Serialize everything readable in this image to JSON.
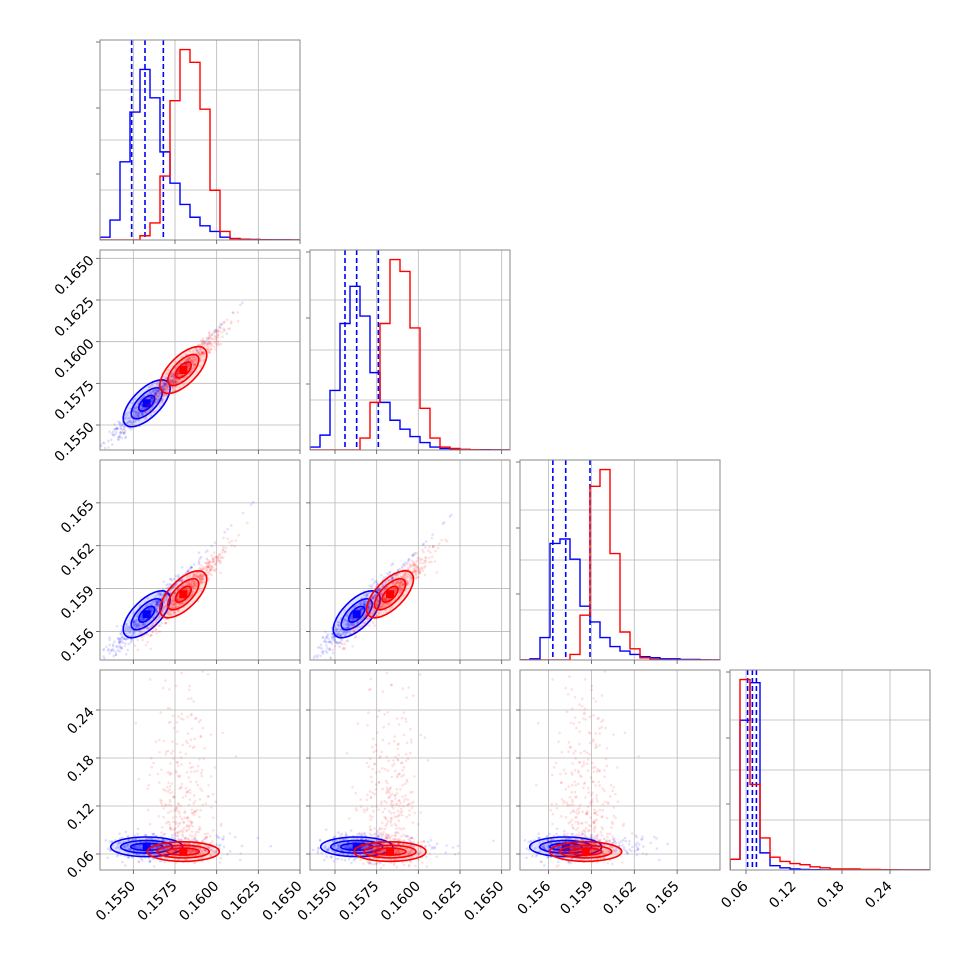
{
  "chart_data": {
    "type": "corner",
    "title": "",
    "grid": true,
    "colors": {
      "blue": "#0000ff",
      "red": "#ff0000"
    },
    "params": [
      {
        "range": [
          0.153,
          0.165
        ],
        "ticks": [
          0.155,
          0.1575,
          0.16,
          0.1625,
          0.165
        ],
        "tick_labels": [
          "0.1550",
          "0.1575",
          "0.1600",
          "0.1625",
          "0.1650"
        ]
      },
      {
        "range": [
          0.1535,
          0.1655
        ],
        "ticks": [
          0.155,
          0.1575,
          0.16,
          0.1625,
          0.165
        ],
        "tick_labels": [
          "0.1550",
          "0.1575",
          "0.1600",
          "0.1625",
          "0.1650"
        ]
      },
      {
        "range": [
          0.154,
          0.168
        ],
        "ticks": [
          0.156,
          0.159,
          0.162,
          0.165
        ],
        "tick_labels": [
          "0.156",
          "0.159",
          "0.162",
          "0.165"
        ]
      },
      {
        "range": [
          0.04,
          0.29
        ],
        "ticks": [
          0.06,
          0.12,
          0.18,
          0.24
        ],
        "tick_labels": [
          "0.06",
          "0.12",
          "0.18",
          "0.24"
        ]
      }
    ],
    "series": [
      {
        "color": "#0000ff",
        "hists": [
          {
            "edges": [
              0.153,
              0.1536,
              0.1542,
              0.1548,
              0.1554,
              0.156,
              0.1566,
              0.1572,
              0.1578,
              0.1584,
              0.159,
              0.1596,
              0.1602,
              0.1608,
              0.1614,
              0.162,
              0.1626,
              0.1632,
              0.1638,
              0.1644,
              0.165
            ],
            "counts": [
              2,
              14,
              55,
              90,
              120,
              100,
              62,
              40,
              25,
              16,
              10,
              6,
              2,
              1,
              0.6,
              0.4,
              0.2,
              0.1,
              0.1,
              0
            ]
          },
          {
            "edges": [
              0.1535,
              0.1541,
              0.1547,
              0.1553,
              0.1559,
              0.1565,
              0.1571,
              0.1577,
              0.1583,
              0.1589,
              0.1595,
              0.1601,
              0.1607,
              0.1613,
              0.1619,
              0.1625,
              0.1631,
              0.1637,
              0.1643,
              0.1649,
              0.1655
            ],
            "counts": [
              2,
              10,
              40,
              85,
              110,
              90,
              52,
              32,
              20,
              14,
              9,
              5,
              2,
              1,
              0.6,
              0.4,
              0.2,
              0.2,
              0.1,
              0
            ]
          },
          {
            "edges": [
              0.154,
              0.1547,
              0.1554,
              0.1561,
              0.1568,
              0.1575,
              0.1582,
              0.1589,
              0.1596,
              0.1603,
              0.161,
              0.1617,
              0.1624,
              0.1631,
              0.1638,
              0.1645,
              0.1652,
              0.1659,
              0.1666,
              0.1673,
              0.168
            ],
            "counts": [
              0,
              1,
              20,
              104,
              108,
              90,
              48,
              34,
              20,
              12,
              8,
              5,
              3,
              2,
              1,
              1,
              0.5,
              0.5,
              0.2,
              0
            ]
          },
          {
            "edges": [
              0.04,
              0.0525,
              0.065,
              0.0775,
              0.09,
              0.1025,
              0.115,
              0.1275,
              0.14,
              0.1525,
              0.165,
              0.1775,
              0.19,
              0.2025,
              0.215,
              0.2275,
              0.24,
              0.2525,
              0.265,
              0.2775,
              0.29
            ],
            "counts": [
              10,
              140,
              175,
              16,
              4,
              2,
              1,
              0.5,
              0.3,
              0.2,
              0.1,
              0.1,
              0.1,
              0,
              0,
              0,
              0,
              0,
              0,
              0
            ]
          }
        ],
        "quantiles": [
          [
            0.1549,
            0.1557,
            0.1568
          ],
          [
            0.1556,
            0.1563,
            0.1576
          ],
          [
            0.1563,
            0.1572,
            0.1589
          ],
          [
            0.062,
            0.068,
            0.073
          ]
        ],
        "centers": [
          0.1557,
          0.1563,
          0.1572,
          0.068
        ],
        "core": {
          "x1": 0.1558,
          "x2": 0.1563,
          "x3": 0.1572,
          "x4": 0.069
        },
        "x4_spread": 0.006
      },
      {
        "color": "#ff0000",
        "hists": [
          {
            "edges": [
              0.153,
              0.1536,
              0.1542,
              0.1548,
              0.1554,
              0.156,
              0.1566,
              0.1572,
              0.1578,
              0.1584,
              0.159,
              0.1596,
              0.1602,
              0.1608,
              0.1614,
              0.162,
              0.1626,
              0.1632,
              0.1638,
              0.1644,
              0.165
            ],
            "counts": [
              0,
              0,
              0,
              0,
              3,
              12,
              45,
              98,
              134,
              125,
              92,
              35,
              6,
              1,
              0.5,
              0.2,
              0.1,
              0,
              0,
              0
            ]
          },
          {
            "edges": [
              0.1535,
              0.1541,
              0.1547,
              0.1553,
              0.1559,
              0.1565,
              0.1571,
              0.1577,
              0.1583,
              0.1589,
              0.1595,
              0.1601,
              0.1607,
              0.1613,
              0.1619,
              0.1625,
              0.1631,
              0.1637,
              0.1643,
              0.1649,
              0.1655
            ],
            "counts": [
              0,
              0,
              0,
              0,
              0,
              8,
              32,
              85,
              128,
              120,
              82,
              28,
              8,
              2,
              1,
              0.4,
              0.2,
              0,
              0,
              0
            ]
          },
          {
            "edges": [
              0.154,
              0.1547,
              0.1554,
              0.1561,
              0.1568,
              0.1575,
              0.1582,
              0.1589,
              0.1596,
              0.1603,
              0.161,
              0.1617,
              0.1624,
              0.1631,
              0.1638,
              0.1645,
              0.1652,
              0.1659,
              0.1666,
              0.1673,
              0.168
            ],
            "counts": [
              0,
              0,
              0,
              0,
              0,
              5,
              40,
              155,
              170,
              95,
              25,
              10,
              2,
              0.5,
              0,
              0,
              0,
              0,
              0,
              0
            ]
          },
          {
            "edges": [
              0.04,
              0.0525,
              0.065,
              0.0775,
              0.09,
              0.1025,
              0.115,
              0.1275,
              0.14,
              0.1525,
              0.165,
              0.1775,
              0.19,
              0.2025,
              0.215,
              0.2275,
              0.24,
              0.2525,
              0.265,
              0.2775,
              0.29
            ],
            "counts": [
              10,
              178,
              80,
              30,
              12,
              8,
              6,
              5,
              3,
              2,
              1,
              1,
              1,
              0.5,
              0.5,
              0.3,
              0.2,
              0.1,
              0,
              0
            ]
          }
        ],
        "quantiles": [],
        "centers": [
          0.158,
          0.1583,
          0.1586,
          0.063
        ],
        "core": {
          "x1": 0.158,
          "x2": 0.1583,
          "x3": 0.1586,
          "x4": 0.063
        },
        "x4_spread": 0.006
      }
    ]
  }
}
